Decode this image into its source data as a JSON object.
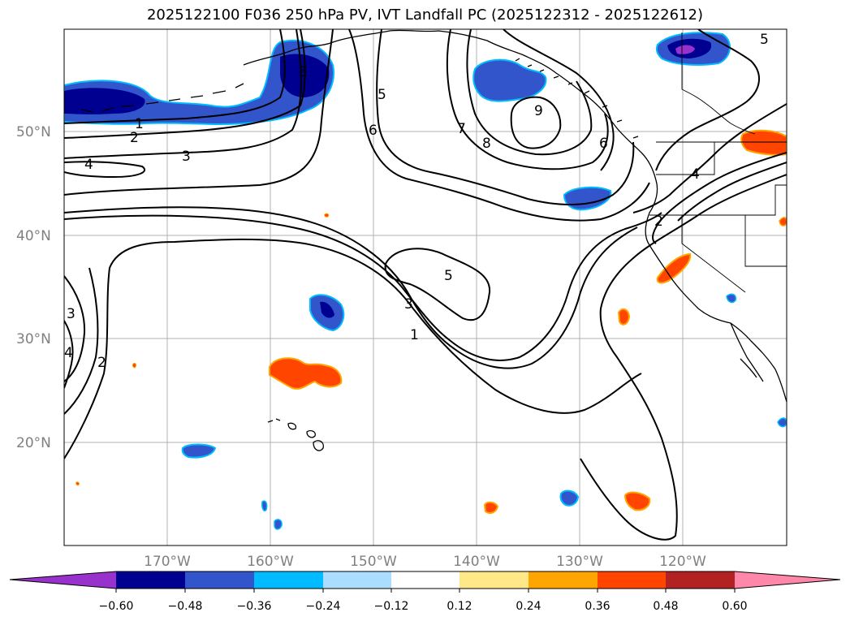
{
  "title": "2025122100 F036 250 hPa PV, IVT Landfall PC (2025122312 - 2025122612)",
  "map": {
    "lat_labels": [
      "50°N",
      "40°N",
      "30°N",
      "20°N"
    ],
    "lon_labels": [
      "170°W",
      "160°W",
      "150°W",
      "140°W",
      "130°W",
      "120°W"
    ],
    "contour_labels": [
      "1",
      "2",
      "3",
      "4",
      "5",
      "5",
      "6",
      "7",
      "8",
      "9",
      "6",
      "4",
      "2",
      "5",
      "3",
      "1",
      "3",
      "4",
      "2",
      "5"
    ]
  },
  "colorbar": {
    "colors": [
      "#9932CC",
      "#000090",
      "#3355CC",
      "#00BBFF",
      "#AADDFF",
      "#FFFFFF",
      "#FFE888",
      "#FFA500",
      "#FF4500",
      "#B22222",
      "#FF88AA"
    ],
    "tick_labels": [
      "−0.60",
      "−0.48",
      "−0.36",
      "−0.24",
      "−0.12",
      "0.12",
      "0.24",
      "0.36",
      "0.48",
      "0.60"
    ]
  }
}
